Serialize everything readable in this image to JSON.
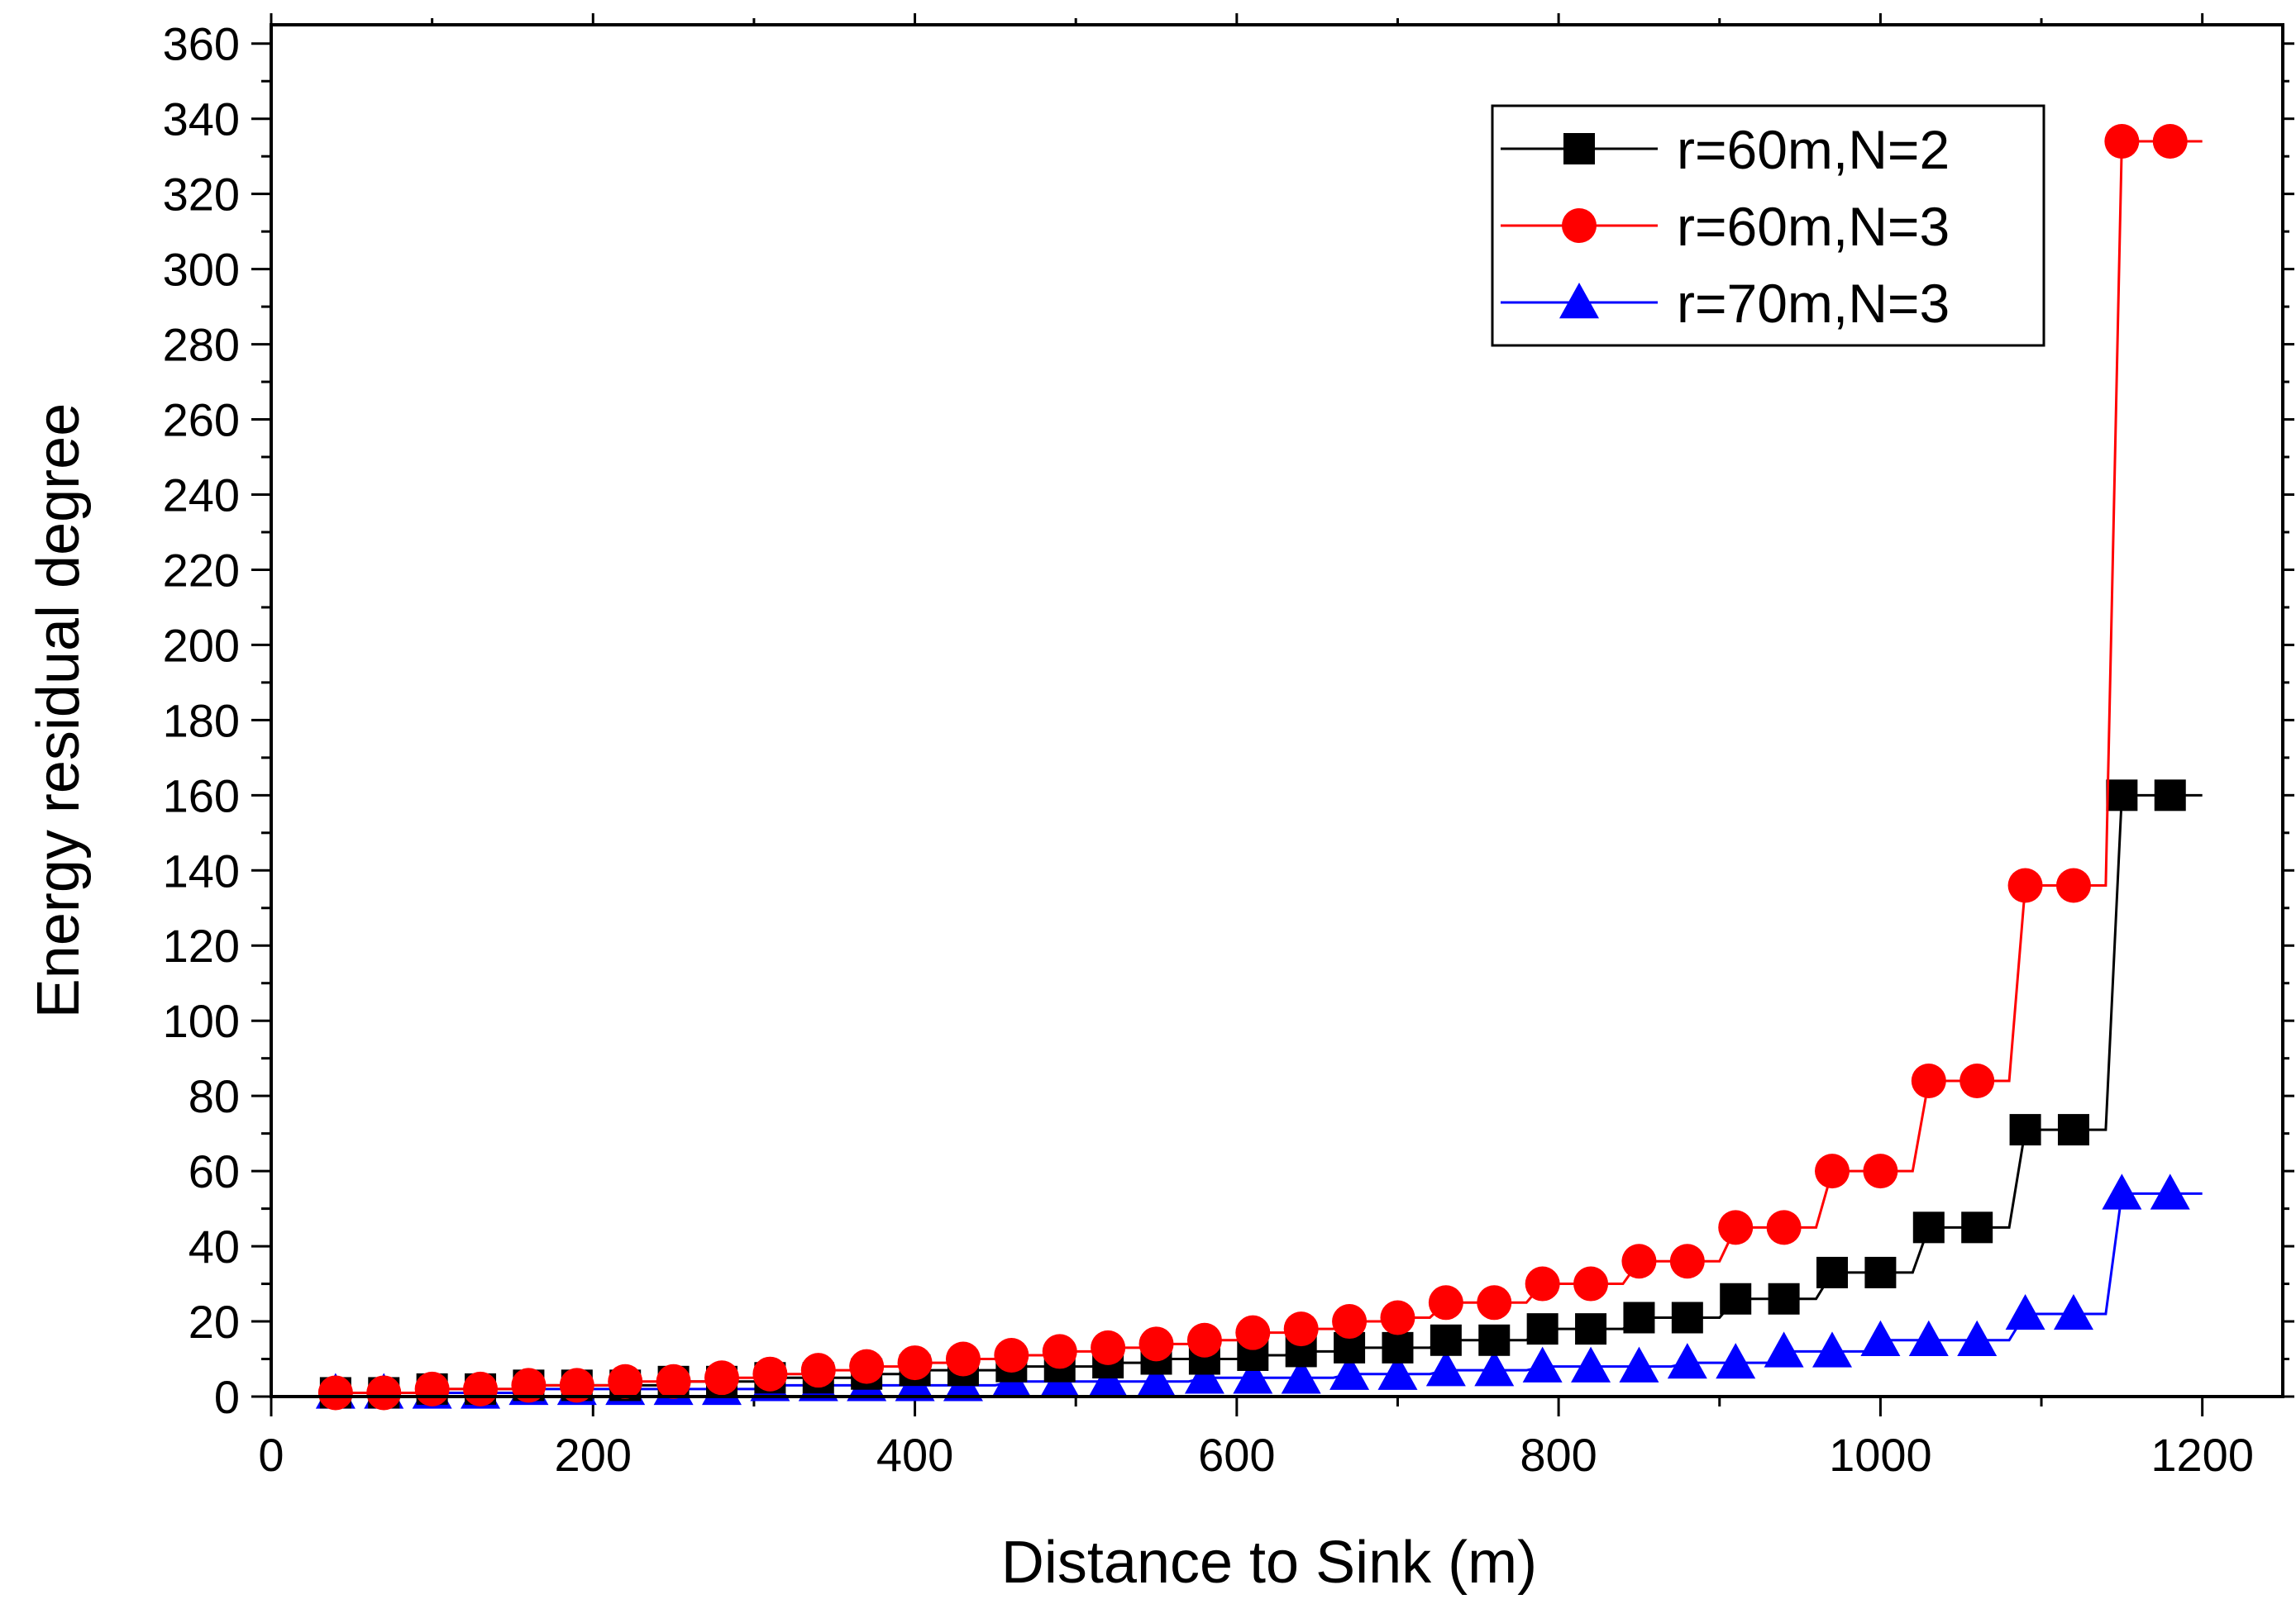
{
  "chart_data": {
    "type": "line",
    "title": "",
    "xlabel": "Distance to Sink (m)",
    "ylabel": "Energy residual degree",
    "xlim": [
      0,
      1250
    ],
    "ylim": [
      0,
      365
    ],
    "xticks": [
      0,
      200,
      400,
      600,
      800,
      1000,
      1200
    ],
    "yticks": [
      0,
      20,
      40,
      60,
      80,
      100,
      120,
      140,
      160,
      180,
      200,
      220,
      240,
      260,
      280,
      300,
      320,
      340,
      360
    ],
    "legend_position": "top-right",
    "x": [
      40,
      70,
      100,
      130,
      160,
      190,
      220,
      250,
      280,
      310,
      340,
      370,
      400,
      430,
      460,
      490,
      520,
      550,
      580,
      610,
      640,
      670,
      700,
      730,
      760,
      790,
      820,
      850,
      880,
      910,
      940,
      970,
      1000,
      1030,
      1060,
      1090,
      1120,
      1150,
      1180
    ],
    "series": [
      {
        "name": "r=60m,N=2",
        "color": "#000000",
        "marker": "square",
        "values": [
          1,
          1,
          2,
          2,
          3,
          3,
          3,
          4,
          4,
          5,
          5,
          6,
          7,
          7,
          8,
          8,
          9,
          10,
          10,
          11,
          12,
          13,
          13,
          15,
          15,
          18,
          18,
          21,
          21,
          26,
          26,
          33,
          33,
          45,
          45,
          71,
          71,
          160,
          160
        ]
      },
      {
        "name": "r=60m,N=3",
        "color": "#ff0000",
        "marker": "circle",
        "values": [
          1,
          1,
          2,
          2,
          3,
          3,
          4,
          4,
          5,
          6,
          7,
          8,
          9,
          10,
          11,
          12,
          13,
          14,
          15,
          17,
          18,
          20,
          21,
          25,
          25,
          30,
          30,
          36,
          36,
          45,
          45,
          60,
          60,
          84,
          84,
          136,
          136,
          334,
          334
        ]
      },
      {
        "name": "r=70m,N=3",
        "color": "#0000ff",
        "marker": "triangle",
        "values": [
          1,
          1,
          1,
          1,
          2,
          2,
          2,
          2,
          2,
          3,
          3,
          3,
          3,
          3,
          4,
          4,
          4,
          4,
          5,
          5,
          5,
          6,
          6,
          7,
          7,
          8,
          8,
          8,
          9,
          9,
          12,
          12,
          15,
          15,
          15,
          22,
          22,
          54,
          54
        ]
      }
    ]
  }
}
